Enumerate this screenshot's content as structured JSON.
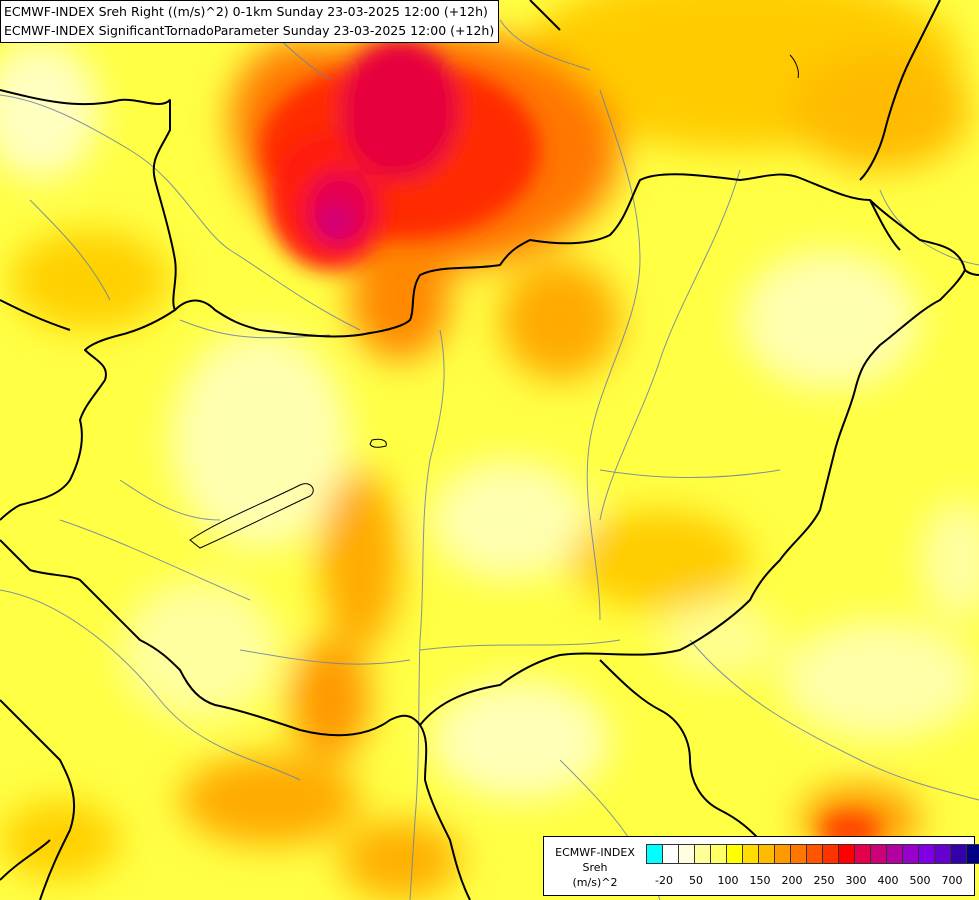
{
  "header": {
    "line1": "ECMWF-INDEX Sreh Right ((m/s)^2) 0-1km Sunday 23-03-2025 12:00 (+12h)",
    "line2": "ECMWF-INDEX SignificantTornadoParameter Sunday 23-03-2025 12:00 (+12h)"
  },
  "legend": {
    "source": "ECMWF-INDEX",
    "parameter": "Sreh",
    "unit": "(m/s)^2",
    "colors": [
      "#00ffff",
      "#ffffff",
      "#ffffe0",
      "#ffff99",
      "#ffff66",
      "#ffff00",
      "#ffdd00",
      "#ffbb00",
      "#ff9900",
      "#ff7700",
      "#ff5500",
      "#ff3300",
      "#ff0000",
      "#e6004c",
      "#cc0077",
      "#b300a0",
      "#9900cc",
      "#7f00e6",
      "#6600cc",
      "#3300aa",
      "#000080"
    ],
    "ticks": [
      "-20",
      "50",
      "100",
      "150",
      "200",
      "250",
      "300",
      "400",
      "500",
      "700"
    ]
  }
}
